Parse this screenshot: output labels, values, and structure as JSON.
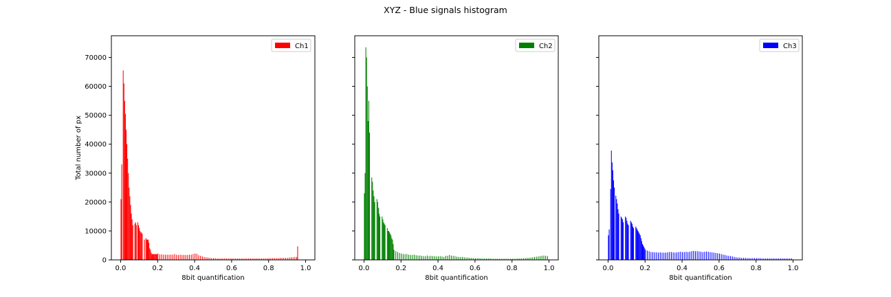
{
  "title": "XYZ - Blue signals histogram",
  "chart_data": [
    {
      "type": "bar",
      "name": "Ch1",
      "color": "#ff0000",
      "xlabel": "8bit quantification",
      "ylabel": "Total number of px",
      "xlim": [
        -0.05,
        1.05
      ],
      "ylim": [
        0,
        77500
      ],
      "xticks": [
        "0.0",
        "0.2",
        "0.4",
        "0.6",
        "0.8",
        "1.0"
      ],
      "yticks": [
        "0",
        "10000",
        "20000",
        "30000",
        "40000",
        "50000",
        "60000",
        "70000"
      ],
      "legend": "top-right",
      "grid": false,
      "bin_width": 0.0039,
      "series": [
        {
          "name": "Ch1",
          "x": [
            0.0,
            0.004,
            0.008,
            0.012,
            0.016,
            0.02,
            0.024,
            0.028,
            0.032,
            0.036,
            0.04,
            0.044,
            0.048,
            0.052,
            0.056,
            0.06,
            0.064,
            0.068,
            0.075,
            0.079,
            0.083,
            0.087,
            0.091,
            0.095,
            0.099,
            0.103,
            0.107,
            0.111,
            0.115,
            0.119,
            0.123,
            0.127,
            0.135,
            0.139,
            0.143,
            0.147,
            0.151,
            0.155,
            0.159,
            0.163,
            0.167,
            0.171,
            0.175,
            0.179,
            0.183,
            0.187,
            0.191,
            0.195,
            0.2,
            0.21,
            0.22,
            0.23,
            0.24,
            0.25,
            0.26,
            0.27,
            0.28,
            0.29,
            0.3,
            0.31,
            0.32,
            0.33,
            0.34,
            0.35,
            0.36,
            0.37,
            0.38,
            0.39,
            0.4,
            0.41,
            0.42,
            0.43,
            0.44,
            0.45,
            0.46,
            0.47,
            0.48,
            0.49,
            0.5,
            0.51,
            0.52,
            0.53,
            0.54,
            0.55,
            0.56,
            0.57,
            0.58,
            0.59,
            0.6,
            0.61,
            0.62,
            0.63,
            0.64,
            0.65,
            0.66,
            0.67,
            0.68,
            0.69,
            0.7,
            0.71,
            0.72,
            0.73,
            0.74,
            0.75,
            0.76,
            0.77,
            0.78,
            0.79,
            0.8,
            0.81,
            0.82,
            0.83,
            0.84,
            0.85,
            0.86,
            0.87,
            0.88,
            0.89,
            0.9,
            0.91,
            0.92,
            0.93,
            0.94,
            0.95,
            0.955
          ],
          "values": [
            21000,
            33000,
            0,
            65500,
            61000,
            55000,
            50500,
            45000,
            40000,
            35000,
            30000,
            25000,
            22000,
            19000,
            16000,
            14000,
            12000,
            0,
            12500,
            13000,
            12000,
            0,
            13000,
            12000,
            11000,
            10000,
            9500,
            9500,
            9000,
            0,
            0,
            7000,
            7500,
            7000,
            7000,
            7000,
            6000,
            4000,
            3500,
            2500,
            2000,
            2000,
            2000,
            2000,
            2000,
            2000,
            2000,
            2000,
            2200,
            1900,
            1900,
            1800,
            1800,
            1800,
            1800,
            1800,
            1800,
            2000,
            1800,
            1700,
            1800,
            1700,
            1700,
            1700,
            1700,
            1800,
            1800,
            2000,
            2200,
            2100,
            1600,
            1400,
            1200,
            1000,
            900,
            800,
            700,
            600,
            600,
            600,
            500,
            500,
            500,
            500,
            500,
            500,
            500,
            500,
            500,
            500,
            500,
            500,
            500,
            500,
            500,
            500,
            500,
            500,
            500,
            500,
            500,
            500,
            500,
            500,
            500,
            500,
            500,
            500,
            600,
            600,
            600,
            600,
            600,
            600,
            700,
            700,
            700,
            700,
            700,
            800,
            900,
            900,
            1000,
            1000,
            4700
          ]
        }
      ]
    },
    {
      "type": "bar",
      "name": "Ch2",
      "color": "#008000",
      "xlabel": "8bit quantification",
      "ylabel": "",
      "xlim": [
        -0.05,
        1.05
      ],
      "ylim": [
        0,
        77500
      ],
      "xticks": [
        "0.0",
        "0.2",
        "0.4",
        "0.6",
        "0.8",
        "1.0"
      ],
      "yticks": [],
      "legend": "top-right",
      "grid": false,
      "bin_width": 0.0039,
      "series": [
        {
          "name": "Ch2",
          "x": [
            0.0,
            0.004,
            0.008,
            0.012,
            0.016,
            0.02,
            0.024,
            0.028,
            0.032,
            0.036,
            0.04,
            0.044,
            0.048,
            0.052,
            0.056,
            0.06,
            0.064,
            0.068,
            0.072,
            0.076,
            0.08,
            0.084,
            0.088,
            0.092,
            0.096,
            0.1,
            0.104,
            0.108,
            0.112,
            0.116,
            0.12,
            0.124,
            0.128,
            0.132,
            0.136,
            0.14,
            0.144,
            0.148,
            0.152,
            0.156,
            0.16,
            0.17,
            0.18,
            0.19,
            0.2,
            0.21,
            0.22,
            0.23,
            0.24,
            0.25,
            0.26,
            0.27,
            0.28,
            0.29,
            0.3,
            0.31,
            0.32,
            0.33,
            0.34,
            0.35,
            0.36,
            0.37,
            0.38,
            0.39,
            0.4,
            0.41,
            0.42,
            0.43,
            0.44,
            0.45,
            0.46,
            0.47,
            0.48,
            0.49,
            0.5,
            0.51,
            0.52,
            0.53,
            0.54,
            0.55,
            0.56,
            0.57,
            0.58,
            0.59,
            0.6,
            0.61,
            0.62,
            0.63,
            0.64,
            0.65,
            0.66,
            0.67,
            0.68,
            0.69,
            0.7,
            0.71,
            0.72,
            0.73,
            0.74,
            0.75,
            0.76,
            0.77,
            0.78,
            0.79,
            0.8,
            0.81,
            0.82,
            0.83,
            0.84,
            0.85,
            0.86,
            0.87,
            0.88,
            0.89,
            0.9,
            0.91,
            0.92,
            0.93,
            0.94,
            0.95,
            0.96,
            0.97,
            0.98,
            0.99
          ],
          "values": [
            23000,
            30000,
            73500,
            70000,
            60000,
            48000,
            55000,
            44000,
            0,
            0,
            28500,
            27000,
            24000,
            22000,
            20000,
            0,
            0,
            21000,
            20000,
            18000,
            16000,
            15000,
            0,
            0,
            15000,
            14000,
            13000,
            12500,
            12000,
            0,
            0,
            11000,
            10000,
            10000,
            9500,
            9000,
            8500,
            7500,
            7000,
            5500,
            3500,
            3000,
            2700,
            2400,
            2200,
            2000,
            2000,
            2000,
            1800,
            1700,
            1700,
            1800,
            1600,
            1500,
            1500,
            1400,
            1300,
            1300,
            1500,
            1300,
            1400,
            1300,
            1300,
            1200,
            1200,
            1300,
            1200,
            1000,
            1400,
            1400,
            1700,
            1500,
            1400,
            1300,
            1100,
            1000,
            1000,
            1000,
            900,
            800,
            800,
            700,
            700,
            600,
            600,
            600,
            600,
            500,
            500,
            500,
            500,
            500,
            500,
            400,
            400,
            400,
            400,
            400,
            400,
            400,
            400,
            400,
            400,
            400,
            400,
            400,
            400,
            500,
            500,
            500,
            600,
            600,
            700,
            700,
            800,
            900,
            1000,
            1100,
            1200,
            1300,
            1400,
            1500,
            1400,
            1300
          ]
        }
      ]
    },
    {
      "type": "bar",
      "name": "Ch3",
      "color": "#0000ff",
      "xlabel": "8bit quantification",
      "ylabel": "",
      "xlim": [
        -0.05,
        1.05
      ],
      "ylim": [
        0,
        77500
      ],
      "xticks": [
        "0.0",
        "0.2",
        "0.4",
        "0.6",
        "0.8",
        "1.0"
      ],
      "yticks": [],
      "legend": "top-right",
      "grid": false,
      "bin_width": 0.0039,
      "series": [
        {
          "name": "Ch3",
          "x": [
            0.0,
            0.004,
            0.008,
            0.012,
            0.016,
            0.02,
            0.024,
            0.028,
            0.032,
            0.036,
            0.04,
            0.044,
            0.048,
            0.052,
            0.056,
            0.06,
            0.064,
            0.068,
            0.072,
            0.076,
            0.08,
            0.084,
            0.088,
            0.092,
            0.096,
            0.1,
            0.104,
            0.108,
            0.112,
            0.116,
            0.12,
            0.124,
            0.128,
            0.132,
            0.136,
            0.14,
            0.144,
            0.148,
            0.152,
            0.156,
            0.16,
            0.164,
            0.168,
            0.172,
            0.176,
            0.18,
            0.184,
            0.188,
            0.192,
            0.196,
            0.2,
            0.21,
            0.22,
            0.23,
            0.24,
            0.25,
            0.26,
            0.27,
            0.28,
            0.29,
            0.3,
            0.31,
            0.32,
            0.33,
            0.34,
            0.35,
            0.36,
            0.37,
            0.38,
            0.39,
            0.4,
            0.41,
            0.42,
            0.43,
            0.44,
            0.45,
            0.46,
            0.47,
            0.48,
            0.49,
            0.5,
            0.51,
            0.52,
            0.53,
            0.54,
            0.55,
            0.56,
            0.57,
            0.58,
            0.59,
            0.6,
            0.61,
            0.62,
            0.63,
            0.64,
            0.65,
            0.66,
            0.67,
            0.68,
            0.69,
            0.7,
            0.71,
            0.72,
            0.73,
            0.74,
            0.75,
            0.76,
            0.77,
            0.78,
            0.79,
            0.8,
            0.81,
            0.82,
            0.83,
            0.84,
            0.85,
            0.86,
            0.87,
            0.88,
            0.89,
            0.9,
            0.91,
            0.92,
            0.93,
            0.94,
            0.95,
            0.96,
            0.97,
            0.98,
            0.99
          ],
          "values": [
            8500,
            10500,
            0,
            24500,
            37800,
            33700,
            31000,
            27500,
            25000,
            0,
            22200,
            21000,
            19500,
            17500,
            16000,
            0,
            0,
            15000,
            14500,
            14000,
            13000,
            0,
            0,
            15000,
            14500,
            13500,
            12500,
            12000,
            0,
            0,
            13500,
            13000,
            12500,
            11500,
            11000,
            0,
            0,
            11500,
            11000,
            10500,
            10000,
            9500,
            9000,
            8500,
            7500,
            6500,
            5500,
            5000,
            4500,
            4000,
            3500,
            3200,
            3000,
            2700,
            2700,
            2600,
            2600,
            2500,
            2600,
            2500,
            2500,
            2500,
            2600,
            2700,
            2700,
            2600,
            2500,
            2600,
            2700,
            2800,
            2700,
            2700,
            2800,
            2700,
            2800,
            3000,
            3100,
            3000,
            3000,
            2900,
            2800,
            2700,
            2800,
            2900,
            2800,
            2700,
            2600,
            2500,
            2400,
            2300,
            2200,
            2000,
            1800,
            1700,
            1500,
            1400,
            1300,
            1200,
            1000,
            900,
            800,
            800,
            700,
            700,
            700,
            600,
            600,
            600,
            600,
            600,
            600,
            600,
            600,
            500,
            500,
            500,
            500,
            500,
            500,
            500,
            500,
            500,
            500,
            500,
            500,
            500,
            500,
            500,
            500,
            500
          ]
        }
      ]
    }
  ]
}
